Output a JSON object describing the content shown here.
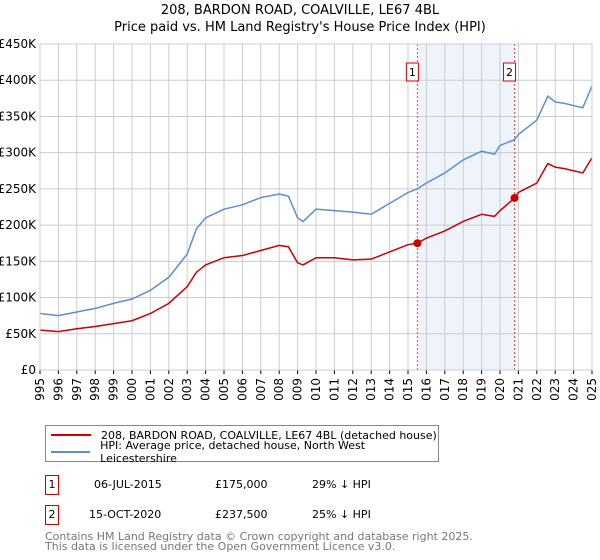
{
  "chart_data": {
    "type": "line",
    "title": "208, BARDON ROAD, COALVILLE, LE67 4BL",
    "subtitle": "Price paid vs. HM Land Registry's House Price Index (HPI)",
    "xlim": [
      1995,
      2025
    ],
    "ylim": [
      0,
      450000
    ],
    "x_ticks": [
      "1995",
      "1996",
      "1997",
      "1998",
      "1999",
      "2000",
      "2001",
      "2002",
      "2003",
      "2004",
      "2005",
      "2006",
      "2007",
      "2008",
      "2009",
      "2010",
      "2011",
      "2012",
      "2013",
      "2014",
      "2015",
      "2016",
      "2017",
      "2018",
      "2019",
      "2020",
      "2021",
      "2022",
      "2023",
      "2024",
      "2025"
    ],
    "y_ticks": [
      {
        "v": 0,
        "label": "£0"
      },
      {
        "v": 50000,
        "label": "£50K"
      },
      {
        "v": 100000,
        "label": "£100K"
      },
      {
        "v": 150000,
        "label": "£150K"
      },
      {
        "v": 200000,
        "label": "£200K"
      },
      {
        "v": 250000,
        "label": "£250K"
      },
      {
        "v": 300000,
        "label": "£300K"
      },
      {
        "v": 350000,
        "label": "£350K"
      },
      {
        "v": 400000,
        "label": "£400K"
      },
      {
        "v": 450000,
        "label": "£450K"
      }
    ],
    "grid": true,
    "x": [
      1995,
      1996,
      1997,
      1998,
      1999,
      2000,
      2001,
      2002,
      2003,
      2003.5,
      2004,
      2005,
      2006,
      2007,
      2008,
      2008.5,
      2009,
      2009.3,
      2010,
      2011,
      2012,
      2013,
      2014,
      2015,
      2015.5,
      2016,
      2017,
      2018,
      2019,
      2019.7,
      2020,
      2020.8,
      2021,
      2022,
      2022.6,
      2023,
      2023.5,
      2024,
      2024.5,
      2025
    ],
    "series": [
      {
        "name": "208, BARDON ROAD, COALVILLE, LE67 4BL (detached house)",
        "color": "#cc0000",
        "values": [
          55000,
          53000,
          57000,
          60000,
          64000,
          68000,
          78000,
          92000,
          115000,
          135000,
          145000,
          155000,
          158000,
          165000,
          172000,
          170000,
          148000,
          145000,
          155000,
          155000,
          152000,
          153000,
          163000,
          173000,
          175000,
          182000,
          192000,
          205000,
          215000,
          212000,
          220000,
          237500,
          245000,
          258000,
          285000,
          280000,
          278000,
          275000,
          272000,
          293000
        ]
      },
      {
        "name": "HPI: Average price, detached house, North West Leicestershire",
        "color": "#5b8fd0",
        "values": [
          78000,
          75000,
          80000,
          85000,
          92000,
          98000,
          110000,
          128000,
          160000,
          195000,
          210000,
          222000,
          228000,
          238000,
          243000,
          240000,
          210000,
          205000,
          222000,
          220000,
          218000,
          215000,
          230000,
          245000,
          250000,
          258000,
          272000,
          290000,
          302000,
          298000,
          310000,
          318000,
          325000,
          345000,
          378000,
          370000,
          368000,
          365000,
          362000,
          392000
        ]
      }
    ],
    "sales": [
      {
        "id": "1",
        "x": 2015.51,
        "price": 175000,
        "date": "06-JUL-2015",
        "price_label": "£175,000",
        "hpi_label": "29% ↓ HPI"
      },
      {
        "id": "2",
        "x": 2020.79,
        "price": 237500,
        "date": "15-OCT-2020",
        "price_label": "£237,500",
        "hpi_label": "25% ↓ HPI"
      }
    ],
    "legend_placement": "below"
  },
  "footer": {
    "line1": "Contains HM Land Registry data © Crown copyright and database right 2025.",
    "line2": "This data is licensed under the Open Government Licence v3.0."
  }
}
